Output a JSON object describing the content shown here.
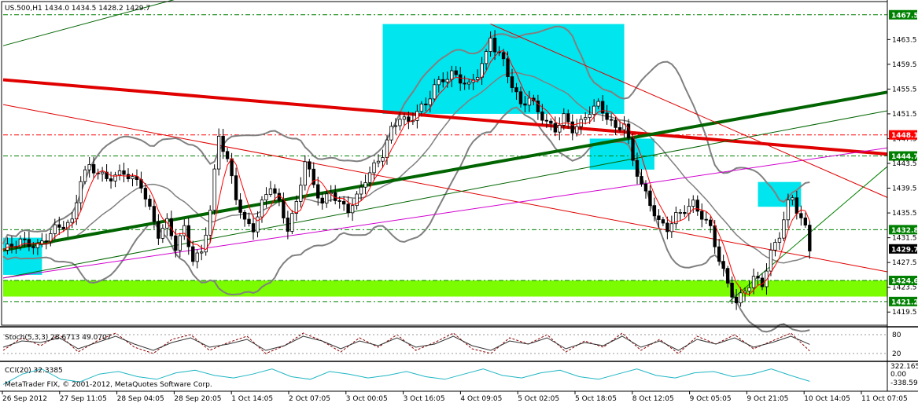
{
  "chart_data": [
    {
      "type": "candlestick",
      "symbol_header": "US.500,H1  1434.0 1434.5 1428.2 1429.7",
      "ylim": [
        1417.5,
        1469.5
      ],
      "y_ticks": [
        1463.5,
        1459.5,
        1455.5,
        1451.5,
        1447.5,
        1443.5,
        1439.5,
        1435.5,
        1431.5,
        1427.5,
        1423.5,
        1419.5
      ],
      "x_ticks": [
        "26 Sep 2012",
        "27 Sep 11:05",
        "28 Sep 04:05",
        "28 Sep 20:05",
        "1 Oct 14:05",
        "2 Oct 07:05",
        "3 Oct 00:05",
        "3 Oct 16:05",
        "4 Oct 09:05",
        "5 Oct 02:05",
        "5 Oct 18:05",
        "8 Oct 12:05",
        "9 Oct 05:05",
        "9 Oct 21:05",
        "10 Oct 14:05",
        "11 Oct 07:05"
      ],
      "level_labels": [
        {
          "value": 1467.5,
          "text": "1467.5",
          "color": "#008000"
        },
        {
          "value": 1448.1,
          "text": "1448.1",
          "color": "#ff0000"
        },
        {
          "value": 1444.7,
          "text": "1444.7",
          "color": "#008000"
        },
        {
          "value": 1432.8,
          "text": "1432.8",
          "color": "#008000"
        },
        {
          "value": 1429.7,
          "text": "1429.7",
          "color": "#000000"
        },
        {
          "value": 1424.6,
          "text": "1424.6",
          "color": "#008000"
        },
        {
          "value": 1421.2,
          "text": "1421.2",
          "color": "#008000"
        }
      ],
      "close_path": [
        [
          0,
          1429.5
        ],
        [
          4,
          1431
        ],
        [
          8,
          1430
        ],
        [
          12,
          1433
        ],
        [
          16,
          1434
        ],
        [
          18,
          1441
        ],
        [
          20,
          1443
        ],
        [
          24,
          1441
        ],
        [
          28,
          1442
        ],
        [
          32,
          1440
        ],
        [
          34,
          1436
        ],
        [
          36,
          1432
        ],
        [
          38,
          1434
        ],
        [
          40,
          1430
        ],
        [
          42,
          1433
        ],
        [
          44,
          1428
        ],
        [
          46,
          1429
        ],
        [
          48,
          1436
        ],
        [
          50,
          1448
        ],
        [
          52,
          1444
        ],
        [
          54,
          1438
        ],
        [
          56,
          1434
        ],
        [
          58,
          1433
        ],
        [
          60,
          1437
        ],
        [
          62,
          1440
        ],
        [
          64,
          1437
        ],
        [
          66,
          1433
        ],
        [
          68,
          1437
        ],
        [
          70,
          1444
        ],
        [
          72,
          1440
        ],
        [
          74,
          1437
        ],
        [
          76,
          1439
        ],
        [
          78,
          1437
        ],
        [
          80,
          1436
        ],
        [
          82,
          1438
        ],
        [
          84,
          1441
        ],
        [
          86,
          1443
        ],
        [
          88,
          1445
        ],
        [
          90,
          1449
        ],
        [
          92,
          1451
        ],
        [
          94,
          1450
        ],
        [
          96,
          1452
        ],
        [
          98,
          1453
        ],
        [
          100,
          1456
        ],
        [
          102,
          1457
        ],
        [
          104,
          1458
        ],
        [
          106,
          1457
        ],
        [
          108,
          1456
        ],
        [
          110,
          1458
        ],
        [
          112,
          1461
        ],
        [
          113,
          1464
        ],
        [
          114,
          1462
        ],
        [
          116,
          1460
        ],
        [
          118,
          1456
        ],
        [
          120,
          1453
        ],
        [
          122,
          1454
        ],
        [
          124,
          1452
        ],
        [
          126,
          1450
        ],
        [
          128,
          1449
        ],
        [
          130,
          1451
        ],
        [
          132,
          1449
        ],
        [
          134,
          1450
        ],
        [
          136,
          1452
        ],
        [
          138,
          1453
        ],
        [
          140,
          1451
        ],
        [
          142,
          1449
        ],
        [
          144,
          1450
        ],
        [
          146,
          1444
        ],
        [
          148,
          1440
        ],
        [
          150,
          1437
        ],
        [
          152,
          1434
        ],
        [
          154,
          1433
        ],
        [
          156,
          1435
        ],
        [
          158,
          1436
        ],
        [
          160,
          1437
        ],
        [
          162,
          1435
        ],
        [
          164,
          1433
        ],
        [
          166,
          1428
        ],
        [
          168,
          1424
        ],
        [
          170,
          1421
        ],
        [
          172,
          1423
        ],
        [
          174,
          1425
        ],
        [
          176,
          1424
        ],
        [
          178,
          1429
        ],
        [
          180,
          1432
        ],
        [
          182,
          1437
        ],
        [
          183,
          1438
        ],
        [
          184,
          1436
        ],
        [
          186,
          1433
        ],
        [
          187,
          1429.7
        ]
      ],
      "trend_lines": [
        {
          "from": [
            0,
            1462.5
          ],
          "to": [
            40,
            1470
          ],
          "color": "#006400"
        },
        {
          "from": [
            0,
            1457
          ],
          "to": [
            205,
            1445
          ],
          "color": "#e00000",
          "weight": "thick"
        },
        {
          "from": [
            0,
            1453
          ],
          "to": [
            205,
            1426
          ],
          "color": "#e00000"
        },
        {
          "from": [
            0,
            1429.5
          ],
          "to": [
            205,
            1455
          ],
          "color": "#006400",
          "weight": "thick"
        },
        {
          "from": [
            0,
            1425
          ],
          "to": [
            205,
            1452
          ],
          "color": "#006400"
        },
        {
          "from": [
            0,
            1425
          ],
          "to": [
            205,
            1446
          ],
          "color": "#d000d0"
        },
        {
          "from": [
            113,
            1466
          ],
          "to": [
            205,
            1438
          ],
          "color": "#e00000"
        },
        {
          "from": [
            168,
            1421
          ],
          "to": [
            205,
            1443
          ],
          "color": "#008000"
        }
      ],
      "zones": [
        {
          "x": [
            0,
            9
          ],
          "y": [
            1425.5,
            1431.5
          ]
        },
        {
          "x": [
            88,
            144
          ],
          "y": [
            1451.5,
            1466
          ]
        },
        {
          "x": [
            136,
            151
          ],
          "y": [
            1442.5,
            1447.5
          ]
        },
        {
          "x": [
            175,
            185
          ],
          "y": [
            1436.5,
            1440.5
          ]
        }
      ],
      "support_band": [
        1422,
        1424.6
      ]
    },
    {
      "type": "line",
      "title": "Stoch(5,3,3) 28.6713 49.0707",
      "ylim": [
        0,
        100
      ],
      "y_ticks": [
        "80",
        "20"
      ],
      "series": [
        {
          "values": [
            30,
            70,
            45,
            80,
            25,
            60,
            85,
            40,
            20,
            65,
            80,
            30,
            55,
            75,
            20,
            45,
            85,
            60,
            25,
            70,
            40,
            80,
            30,
            55,
            85,
            35,
            20,
            70,
            50,
            80,
            25,
            60,
            40,
            85,
            30,
            65,
            20,
            75,
            50,
            80,
            35,
            60,
            85,
            28
          ],
          "color": "#8b0000"
        },
        {
          "values": [
            40,
            60,
            55,
            70,
            35,
            55,
            75,
            50,
            30,
            55,
            70,
            40,
            50,
            65,
            30,
            45,
            75,
            60,
            35,
            60,
            45,
            70,
            40,
            50,
            75,
            45,
            30,
            60,
            50,
            70,
            35,
            55,
            45,
            75,
            40,
            60,
            30,
            65,
            50,
            70,
            40,
            55,
            75,
            49
          ],
          "color": "#333333"
        }
      ]
    },
    {
      "type": "line",
      "title": "CCI(20) 32.3385",
      "y_ticks": [
        "322.165",
        "0.00",
        "-338.596"
      ],
      "series": [
        {
          "values": [
            20,
            60,
            80,
            40,
            30,
            60,
            70,
            50,
            40,
            65,
            75,
            55,
            45,
            60,
            80,
            50,
            40,
            70,
            60,
            45,
            55,
            70,
            50,
            40,
            60,
            80,
            55,
            45,
            65,
            75,
            50,
            40,
            60,
            80,
            55,
            45,
            65,
            70,
            50,
            60,
            80,
            55,
            32
          ],
          "color": "#1fb5c4"
        }
      ]
    }
  ],
  "footer": {
    "copyright": "MetaTrader FIX, © 2001-2012, MetaQuotes Software Corp."
  },
  "colors": {
    "zone": "#00e5ee",
    "band": "#7cfc00",
    "bear_candle": "#000000",
    "bull_candle": "#ffffff",
    "bollinger": "#808080",
    "ma": "#ff0000"
  }
}
